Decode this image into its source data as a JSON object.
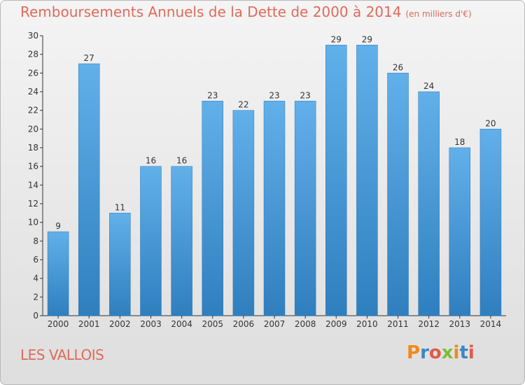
{
  "header": {
    "title": "Remboursements Annuels de la Dette de 2000 à 2014",
    "unit": "(en milliers d'€)"
  },
  "footer": {
    "commune": "LES VALLOIS",
    "logo_text": "Proxiti"
  },
  "colors": {
    "title": "#e06a5a",
    "bar_top": "#62b0ea",
    "bar_bottom": "#2f7fbf",
    "logo": [
      "#f08a1c",
      "#3d86c6",
      "#e05a4a",
      "#7dbd3a",
      "#f08a1c",
      "#3d86c6",
      "#e05a4a"
    ]
  },
  "chart_data": {
    "type": "bar",
    "title": "Remboursements Annuels de la Dette de 2000 à 2014",
    "categories": [
      "2000",
      "2001",
      "2002",
      "2003",
      "2004",
      "2005",
      "2006",
      "2007",
      "2008",
      "2009",
      "2010",
      "2011",
      "2012",
      "2013",
      "2014"
    ],
    "values": [
      9,
      27,
      11,
      16,
      16,
      23,
      22,
      23,
      23,
      29,
      29,
      26,
      24,
      18,
      20
    ],
    "ylim": [
      0,
      30
    ],
    "yticks": [
      0,
      2,
      4,
      6,
      8,
      10,
      12,
      14,
      16,
      18,
      20,
      22,
      24,
      26,
      28,
      30
    ],
    "grid": false,
    "xlabel": "",
    "ylabel": ""
  }
}
